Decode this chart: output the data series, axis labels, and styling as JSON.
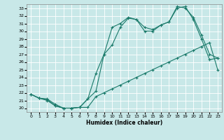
{
  "xlabel": "Humidex (Indice chaleur)",
  "xlim": [
    -0.5,
    23.5
  ],
  "ylim": [
    19.5,
    33.5
  ],
  "yticks": [
    20,
    21,
    22,
    23,
    24,
    25,
    26,
    27,
    28,
    29,
    30,
    31,
    32,
    33
  ],
  "xticks": [
    0,
    1,
    2,
    3,
    4,
    5,
    6,
    7,
    8,
    9,
    10,
    11,
    12,
    13,
    14,
    15,
    16,
    17,
    18,
    19,
    20,
    21,
    22,
    23
  ],
  "bg_color": "#c8e8e8",
  "grid_color": "#ffffff",
  "line_color": "#1a7a6a",
  "line1_x": [
    0,
    1,
    2,
    3,
    4,
    5,
    6,
    7,
    8,
    9,
    10,
    11,
    12,
    13,
    14,
    15,
    16,
    17,
    18,
    19,
    20,
    21,
    22,
    23
  ],
  "line1_y": [
    21.8,
    21.3,
    21.1,
    20.3,
    20.0,
    20.0,
    20.1,
    20.1,
    21.5,
    22.0,
    22.5,
    23.0,
    23.5,
    24.0,
    24.5,
    25.0,
    25.5,
    26.0,
    26.5,
    27.0,
    27.5,
    28.0,
    28.5,
    25.0
  ],
  "line2_x": [
    0,
    1,
    2,
    3,
    4,
    5,
    6,
    7,
    8,
    9,
    10,
    11,
    12,
    13,
    14,
    15,
    16,
    17,
    18,
    19,
    20,
    21,
    22,
    23
  ],
  "line2_y": [
    21.8,
    21.3,
    21.2,
    20.5,
    20.0,
    20.0,
    20.1,
    21.2,
    22.2,
    27.0,
    28.2,
    30.5,
    31.7,
    31.5,
    30.5,
    30.2,
    30.8,
    31.2,
    33.0,
    33.2,
    31.5,
    29.0,
    26.3,
    26.5
  ],
  "line3_x": [
    0,
    1,
    2,
    3,
    4,
    5,
    6,
    7,
    8,
    9,
    10,
    11,
    12,
    13,
    14,
    15,
    16,
    17,
    18,
    19,
    20,
    21,
    22,
    23
  ],
  "line3_y": [
    21.8,
    21.3,
    21.0,
    20.3,
    20.0,
    20.0,
    20.1,
    21.2,
    24.5,
    27.0,
    30.5,
    31.0,
    31.8,
    31.5,
    30.0,
    30.0,
    30.8,
    31.2,
    33.2,
    33.0,
    31.8,
    29.5,
    27.0,
    26.5
  ]
}
